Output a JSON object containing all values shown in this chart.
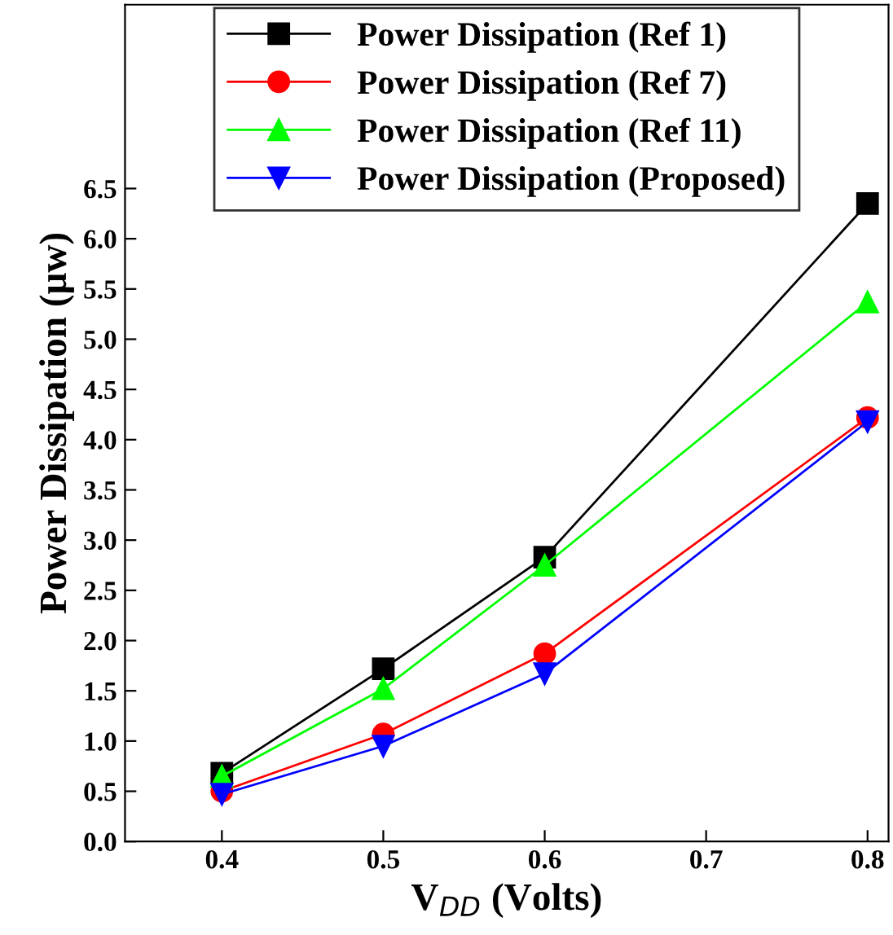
{
  "chart_data": {
    "type": "line",
    "x": [
      0.4,
      0.5,
      0.6,
      0.8
    ],
    "series": [
      {
        "name": "Power Dissipation (Ref 1)",
        "color": "#000000",
        "marker": "square",
        "values": [
          0.68,
          1.72,
          2.83,
          6.35
        ]
      },
      {
        "name": "Power Dissipation (Ref 7)",
        "color": "#ff0000",
        "marker": "circle",
        "values": [
          0.5,
          1.07,
          1.87,
          4.22
        ]
      },
      {
        "name": "Power Dissipation (Ref 11)",
        "color": "#00ff00",
        "marker": "triangle",
        "values": [
          0.65,
          1.52,
          2.75,
          5.37
        ]
      },
      {
        "name": "Power Dissipation (Proposed)",
        "color": "#0000ff",
        "marker": "triangle_down",
        "values": [
          0.47,
          0.95,
          1.67,
          4.18
        ]
      }
    ],
    "xlabel": "V$_{DD}$ (Volts)",
    "ylabel": "Power Dissipation (μw)",
    "xlim": [
      0.34,
      0.813
    ],
    "ylim": [
      0,
      8.33
    ],
    "xticks": [
      0.4,
      0.5,
      0.6,
      0.7,
      0.8
    ],
    "yticks": [
      {
        "value": 0,
        "label": "0.0"
      },
      0.5,
      {
        "value": 1,
        "label": "1.0"
      },
      1.5,
      {
        "value": 2,
        "label": "2.0"
      },
      2.5,
      {
        "value": 3,
        "label": "3.0"
      },
      3.5,
      {
        "value": 4,
        "label": "4.0"
      },
      4.5,
      {
        "value": 5,
        "label": "5.0"
      },
      5.5,
      {
        "value": 6,
        "label": "6.0"
      },
      6.5
    ],
    "legend": "top",
    "grid": false
  }
}
